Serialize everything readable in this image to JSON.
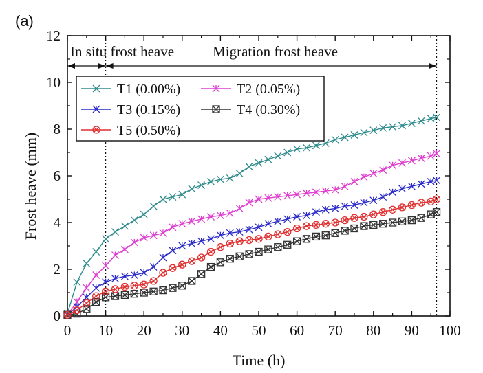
{
  "panel_label": "(a)",
  "chart_data": {
    "type": "line",
    "title": "",
    "xlabel": "Time (h)",
    "ylabel": "Frost heave (mm)",
    "xlim": [
      0,
      100
    ],
    "ylim": [
      0,
      12
    ],
    "xticks": [
      0,
      10,
      20,
      30,
      40,
      50,
      60,
      70,
      80,
      90,
      100
    ],
    "yticks": [
      0,
      2,
      4,
      6,
      8,
      10,
      12
    ],
    "grid": false,
    "legend_position": "top-left",
    "phase_boundaries": [
      10,
      96.5
    ],
    "annotations": [
      {
        "text": "In situ frost heave",
        "from_x": 0,
        "to_x": 10
      },
      {
        "text": "Migration frost heave",
        "from_x": 10,
        "to_x": 96.5
      }
    ],
    "series": [
      {
        "name": "T1 (0.00%)",
        "color": "#2e8b8b",
        "marker": "x-diagonal",
        "x": [
          0,
          2.5,
          5,
          7.5,
          10,
          12.5,
          15,
          17.5,
          20,
          22.5,
          25,
          27.5,
          30,
          32.5,
          35,
          37.5,
          40,
          42.5,
          45,
          47.5,
          50,
          52.5,
          55,
          57.5,
          60,
          62.5,
          65,
          67.5,
          70,
          72.5,
          75,
          77.5,
          80,
          82.5,
          85,
          87.5,
          90,
          92.5,
          95,
          96.5
        ],
        "values": [
          0.1,
          1.45,
          2.25,
          2.75,
          3.3,
          3.6,
          3.85,
          4.1,
          4.35,
          4.7,
          5.0,
          5.1,
          5.2,
          5.45,
          5.6,
          5.75,
          5.85,
          5.9,
          6.1,
          6.4,
          6.55,
          6.7,
          6.85,
          7.0,
          7.15,
          7.2,
          7.3,
          7.4,
          7.55,
          7.65,
          7.75,
          7.85,
          7.95,
          8.05,
          8.1,
          8.15,
          8.25,
          8.35,
          8.45,
          8.5
        ]
      },
      {
        "name": "T2 (0.05%)",
        "color": "#dd3ccf",
        "marker": "x-asterisk",
        "x": [
          0,
          2.5,
          5,
          7.5,
          10,
          12.5,
          15,
          17.5,
          20,
          22.5,
          25,
          27.5,
          30,
          32.5,
          35,
          37.5,
          40,
          42.5,
          45,
          47.5,
          50,
          52.5,
          55,
          57.5,
          60,
          62.5,
          65,
          67.5,
          70,
          72.5,
          75,
          77.5,
          80,
          82.5,
          85,
          87.5,
          90,
          92.5,
          95,
          96.5
        ],
        "values": [
          0.05,
          0.6,
          1.2,
          1.75,
          2.15,
          2.6,
          2.85,
          3.15,
          3.35,
          3.45,
          3.55,
          3.8,
          3.95,
          4.05,
          4.15,
          4.25,
          4.3,
          4.4,
          4.6,
          4.85,
          5.0,
          5.05,
          5.1,
          5.15,
          5.2,
          5.25,
          5.3,
          5.35,
          5.4,
          5.55,
          5.75,
          5.95,
          6.1,
          6.25,
          6.45,
          6.55,
          6.65,
          6.75,
          6.85,
          6.95
        ]
      },
      {
        "name": "T3 (0.15%)",
        "color": "#2a2ac8",
        "marker": "x-asterisk",
        "x": [
          0,
          2.5,
          5,
          7.5,
          10,
          12.5,
          15,
          17.5,
          20,
          22.5,
          25,
          27.5,
          30,
          32.5,
          35,
          37.5,
          40,
          42.5,
          45,
          47.5,
          50,
          52.5,
          55,
          57.5,
          60,
          62.5,
          65,
          67.5,
          70,
          72.5,
          75,
          77.5,
          80,
          82.5,
          85,
          87.5,
          90,
          92.5,
          95,
          96.5
        ],
        "values": [
          0.05,
          0.4,
          0.8,
          1.2,
          1.45,
          1.6,
          1.7,
          1.75,
          1.85,
          2.1,
          2.5,
          2.8,
          3.0,
          3.1,
          3.2,
          3.3,
          3.45,
          3.55,
          3.6,
          3.7,
          3.8,
          3.95,
          4.05,
          4.15,
          4.25,
          4.3,
          4.45,
          4.55,
          4.6,
          4.7,
          4.75,
          4.85,
          4.95,
          5.1,
          5.3,
          5.45,
          5.55,
          5.65,
          5.75,
          5.8
        ]
      },
      {
        "name": "T4 (0.30%)",
        "color": "#333333",
        "marker": "square-x",
        "x": [
          0,
          2.5,
          5,
          7.5,
          10,
          12.5,
          15,
          17.5,
          20,
          22.5,
          25,
          27.5,
          30,
          32.5,
          35,
          37.5,
          40,
          42.5,
          45,
          47.5,
          50,
          52.5,
          55,
          57.5,
          60,
          62.5,
          65,
          67.5,
          70,
          72.5,
          75,
          77.5,
          80,
          82.5,
          85,
          87.5,
          90,
          92.5,
          95,
          96.5
        ],
        "values": [
          0.05,
          0.1,
          0.3,
          0.6,
          0.8,
          0.85,
          0.9,
          0.95,
          1.0,
          1.05,
          1.1,
          1.2,
          1.3,
          1.5,
          1.8,
          2.1,
          2.3,
          2.45,
          2.55,
          2.65,
          2.75,
          2.85,
          2.95,
          3.05,
          3.2,
          3.3,
          3.4,
          3.45,
          3.55,
          3.65,
          3.75,
          3.85,
          3.9,
          3.95,
          4.0,
          4.05,
          4.1,
          4.2,
          4.35,
          4.45
        ]
      },
      {
        "name": "T5 (0.50%)",
        "color": "#e03030",
        "marker": "circle-x",
        "x": [
          0,
          2.5,
          5,
          7.5,
          10,
          12.5,
          15,
          17.5,
          20,
          22.5,
          25,
          27.5,
          30,
          32.5,
          35,
          37.5,
          40,
          42.5,
          45,
          47.5,
          50,
          52.5,
          55,
          57.5,
          60,
          62.5,
          65,
          67.5,
          70,
          72.5,
          75,
          77.5,
          80,
          82.5,
          85,
          87.5,
          90,
          92.5,
          95,
          96.5
        ],
        "values": [
          0.05,
          0.25,
          0.55,
          0.85,
          1.05,
          1.15,
          1.25,
          1.3,
          1.35,
          1.5,
          1.85,
          2.05,
          2.2,
          2.35,
          2.5,
          2.75,
          2.95,
          3.1,
          3.2,
          3.25,
          3.3,
          3.4,
          3.5,
          3.6,
          3.75,
          3.85,
          3.9,
          3.95,
          4.0,
          4.1,
          4.2,
          4.25,
          4.35,
          4.45,
          4.55,
          4.65,
          4.75,
          4.85,
          4.9,
          5.0
        ]
      }
    ]
  }
}
